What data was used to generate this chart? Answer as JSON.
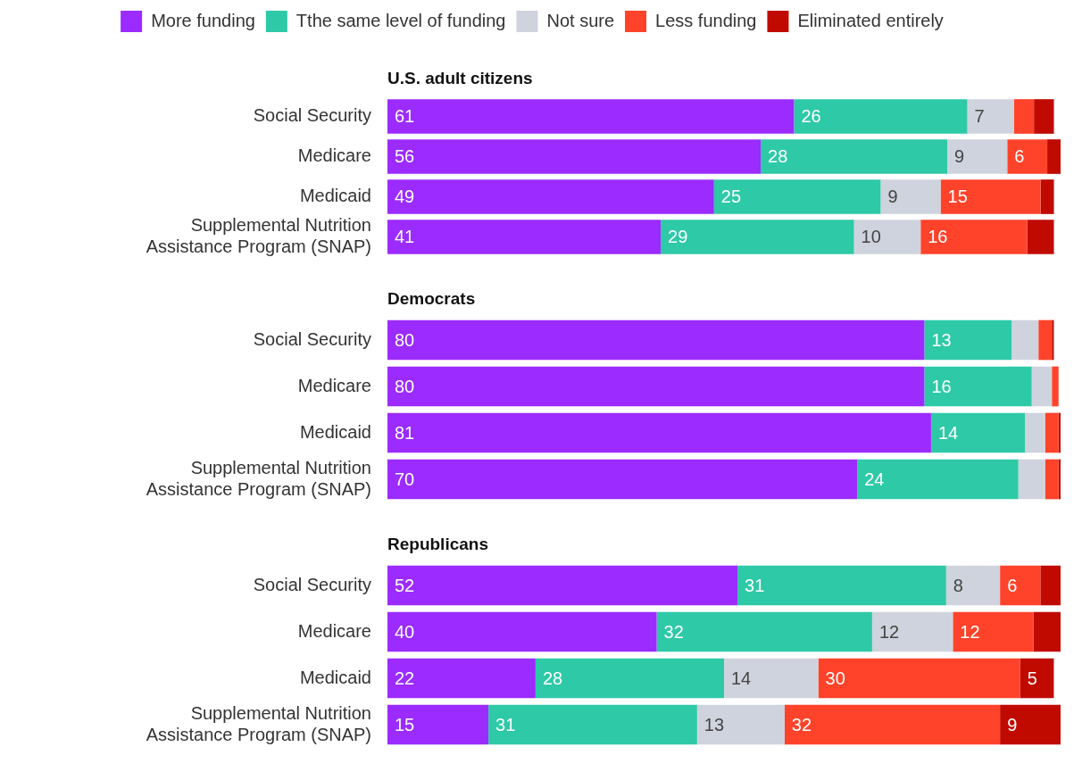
{
  "chart_data": [
    {
      "type": "bar",
      "orientation": "horizontal",
      "stacked": true,
      "title": "U.S. adult citizens",
      "legend": "top",
      "tick_labels": "y",
      "categories": [
        "Social Security",
        "Medicare",
        "Medicaid",
        "Supplemental Nutrition Assistance Program (SNAP)"
      ],
      "series": [
        {
          "name": "More funding",
          "color": "#9b2bff",
          "values": [
            61,
            56,
            49,
            41
          ],
          "value_labels": [
            "61",
            "56",
            "49",
            "41"
          ]
        },
        {
          "name": "Tthe same level of funding",
          "color": "#2ec9a7",
          "values": [
            26,
            28,
            25,
            29
          ],
          "value_labels": [
            "26",
            "28",
            "25",
            "29"
          ]
        },
        {
          "name": "Not sure",
          "color": "#cfd3dd",
          "values": [
            7,
            9,
            9,
            10
          ],
          "value_labels": [
            "7",
            "9",
            "9",
            "10"
          ]
        },
        {
          "name": "Less funding",
          "color": "#ff432b",
          "values": [
            3,
            6,
            15,
            16
          ],
          "value_labels": [
            null,
            "6",
            "15",
            "16"
          ]
        },
        {
          "name": "Eliminated entirely",
          "color": "#c00a00",
          "values": [
            3,
            2,
            2,
            4
          ],
          "value_labels": [
            null,
            null,
            null,
            null
          ]
        }
      ]
    },
    {
      "type": "bar",
      "orientation": "horizontal",
      "stacked": true,
      "title": "Democrats",
      "tick_labels": "y",
      "categories": [
        "Social Security",
        "Medicare",
        "Medicaid",
        "Supplemental Nutrition Assistance Program (SNAP)"
      ],
      "series": [
        {
          "color": "#9b2bff",
          "values": [
            80,
            80,
            81,
            70
          ],
          "value_labels": [
            "80",
            "80",
            "81",
            "70"
          ]
        },
        {
          "color": "#2ec9a7",
          "values": [
            13,
            16,
            14,
            24
          ],
          "value_labels": [
            "13",
            "16",
            "14",
            "24"
          ]
        },
        {
          "color": "#cfd3dd",
          "values": [
            4,
            3,
            3,
            4
          ],
          "value_labels": [
            null,
            null,
            null,
            null
          ]
        },
        {
          "color": "#ff432b",
          "values": [
            2,
            1,
            2,
            2
          ],
          "value_labels": [
            null,
            null,
            null,
            null
          ]
        },
        {
          "color": "#c00a00",
          "values": [
            0.3,
            0,
            0.3,
            0.3
          ],
          "value_labels": [
            null,
            null,
            null,
            null
          ]
        }
      ]
    },
    {
      "type": "bar",
      "orientation": "horizontal",
      "stacked": true,
      "title": "Republicans",
      "tick_labels": "y",
      "categories": [
        "Social Security",
        "Medicare",
        "Medicaid",
        "Supplemental Nutrition Assistance Program (SNAP)"
      ],
      "series": [
        {
          "color": "#9b2bff",
          "values": [
            52,
            40,
            22,
            15
          ],
          "value_labels": [
            "52",
            "40",
            "22",
            "15"
          ]
        },
        {
          "color": "#2ec9a7",
          "values": [
            31,
            32,
            28,
            31
          ],
          "value_labels": [
            "31",
            "32",
            "28",
            "31"
          ]
        },
        {
          "color": "#cfd3dd",
          "values": [
            8,
            12,
            14,
            13
          ],
          "value_labels": [
            "8",
            "12",
            "14",
            "13"
          ]
        },
        {
          "color": "#ff432b",
          "values": [
            6,
            12,
            30,
            32
          ],
          "value_labels": [
            "6",
            "12",
            "30",
            "32"
          ]
        },
        {
          "color": "#c00a00",
          "values": [
            3,
            4,
            5,
            9
          ],
          "value_labels": [
            null,
            null,
            "5",
            "9"
          ]
        }
      ]
    }
  ]
}
